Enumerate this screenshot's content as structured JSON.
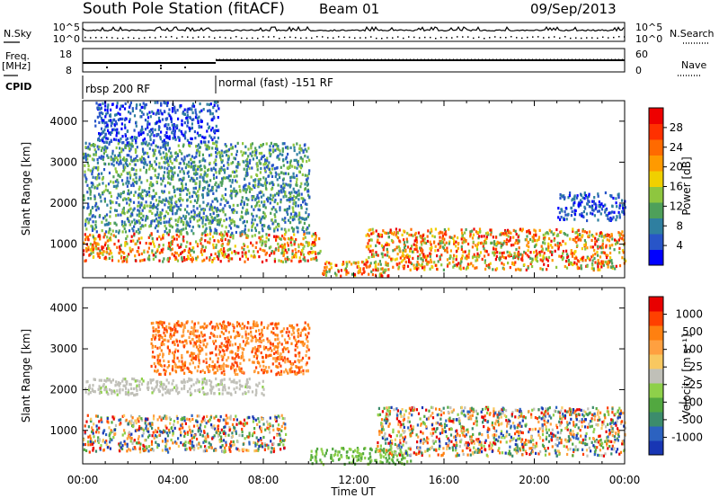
{
  "header": {
    "station": "South Pole Station (fitACF)",
    "beam": "Beam 01",
    "date": "09/Sep/2013"
  },
  "left_labels": {
    "nsky": "N.Sky",
    "freq": "Freq.",
    "freq_unit": "[MHz]",
    "cpid": "CPID"
  },
  "right_labels": {
    "nsearch": "N.Search",
    "nave": "Nave"
  },
  "noise_panel": {
    "left_ticks": [
      "10^5",
      "10^0"
    ],
    "right_ticks": [
      "10^5",
      "10^0"
    ]
  },
  "freq_panel": {
    "left_ticks": [
      "18",
      "8"
    ],
    "right_ticks": [
      "60",
      "0"
    ]
  },
  "cpid_panel": {
    "segments": [
      {
        "label": "rbsp 200 RF",
        "start": "00:00",
        "end": "06:00"
      },
      {
        "label": "normal (fast) -151 RF",
        "start": "06:00",
        "end": "24:00"
      }
    ]
  },
  "x_axis": {
    "label": "Time UT",
    "ticks": [
      "00:00",
      "04:00",
      "08:00",
      "12:00",
      "16:00",
      "20:00",
      "00:00"
    ]
  },
  "chart_data": [
    {
      "type": "heatmap",
      "name": "power",
      "ylabel": "Slant Range [km]",
      "yticks": [
        "1000",
        "2000",
        "3000",
        "4000"
      ],
      "ylim": [
        180,
        4500
      ],
      "xlim": [
        0,
        24
      ],
      "colorbar": {
        "label": "Power [dB]",
        "ticks": [
          "4",
          "8",
          "12",
          "16",
          "20",
          "24",
          "28"
        ],
        "colors": [
          "#0000ff",
          "#2855c8",
          "#2f7fa0",
          "#4ea05a",
          "#8ec63f",
          "#f0d000",
          "#ff9a00",
          "#ff6a00",
          "#ff3000",
          "#ee0000"
        ]
      },
      "regions": [
        {
          "x": [
            0.0,
            10.5
          ],
          "y": [
            600,
            1300
          ],
          "level": "high"
        },
        {
          "x": [
            10.5,
            13.5
          ],
          "y": [
            250,
            600
          ],
          "level": "high"
        },
        {
          "x": [
            12.5,
            24.0
          ],
          "y": [
            400,
            1400
          ],
          "level": "high"
        },
        {
          "x": [
            0.0,
            10.0
          ],
          "y": [
            1300,
            3500
          ],
          "level": "mid"
        },
        {
          "x": [
            0.5,
            6.0
          ],
          "y": [
            3500,
            4500
          ],
          "level": "low"
        },
        {
          "x": [
            21.0,
            24.0
          ],
          "y": [
            1600,
            2300
          ],
          "level": "low"
        }
      ]
    },
    {
      "type": "heatmap",
      "name": "velocity",
      "ylabel": "Slant Range [km]",
      "yticks": [
        "1000",
        "2000",
        "3000",
        "4000"
      ],
      "ylim": [
        180,
        4500
      ],
      "xlim": [
        0,
        24
      ],
      "colorbar": {
        "label": "Velocity [m s⁻¹]",
        "ticks": [
          "1000",
          "500",
          "100",
          "25",
          "-25",
          "-100",
          "-500",
          "-1000"
        ],
        "colors": [
          "#1836b4",
          "#2c62c0",
          "#3c8c6c",
          "#52a840",
          "#8ed04a",
          "#c0c0b8",
          "#f8c860",
          "#ffa040",
          "#ff8010",
          "#ff4000",
          "#e80000"
        ]
      },
      "regions": [
        {
          "x": [
            0.0,
            8.0
          ],
          "y": [
            1900,
            2300
          ],
          "level": "ground"
        },
        {
          "x": [
            0.0,
            9.0
          ],
          "y": [
            500,
            1400
          ],
          "level": "mixed"
        },
        {
          "x": [
            10.0,
            14.5
          ],
          "y": [
            200,
            600
          ],
          "level": "toward"
        },
        {
          "x": [
            13.0,
            24.0
          ],
          "y": [
            400,
            1600
          ],
          "level": "mixed"
        },
        {
          "x": [
            3.0,
            10.0
          ],
          "y": [
            2400,
            3700
          ],
          "level": "away"
        }
      ]
    }
  ]
}
